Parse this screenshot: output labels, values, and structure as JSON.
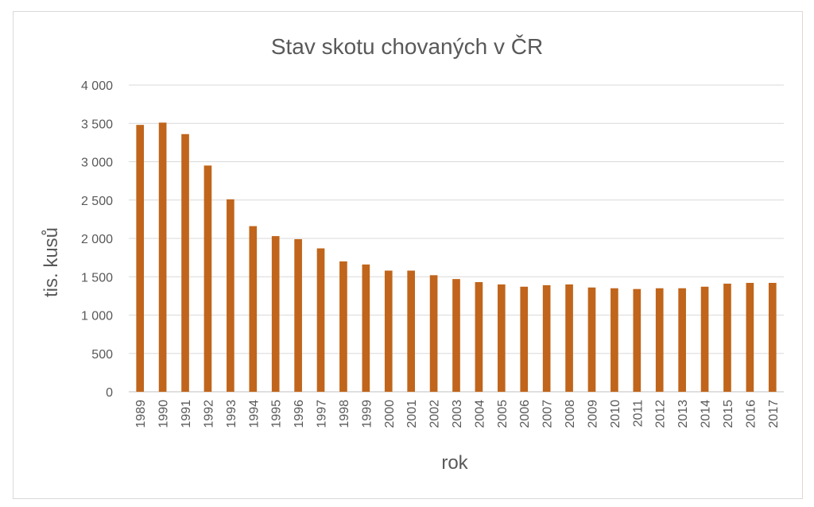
{
  "chart_data": {
    "type": "bar",
    "title": "Stav skotu chovaných v ČR",
    "xlabel": "rok",
    "ylabel": "tis. kusů",
    "ylim": [
      0,
      4000
    ],
    "yticks": [
      0,
      500,
      1000,
      1500,
      2000,
      2500,
      3000,
      3500,
      4000
    ],
    "ytick_labels": [
      "0",
      "500",
      "1 000",
      "1 500",
      "2 000",
      "2 500",
      "3 000",
      "3 500",
      "4 000"
    ],
    "grid": true,
    "legend": "none",
    "bar_color": "#C0651B",
    "categories": [
      "1989",
      "1990",
      "1991",
      "1992",
      "1993",
      "1994",
      "1995",
      "1996",
      "1997",
      "1998",
      "1999",
      "2000",
      "2001",
      "2002",
      "2003",
      "2004",
      "2005",
      "2006",
      "2007",
      "2008",
      "2009",
      "2010",
      "2011",
      "2012",
      "2013",
      "2014",
      "2015",
      "2016",
      "2017"
    ],
    "values": [
      3480,
      3510,
      3360,
      2950,
      2510,
      2160,
      2030,
      1990,
      1870,
      1700,
      1660,
      1580,
      1580,
      1520,
      1470,
      1430,
      1400,
      1370,
      1390,
      1400,
      1360,
      1350,
      1340,
      1350,
      1350,
      1370,
      1410,
      1420,
      1420
    ]
  }
}
